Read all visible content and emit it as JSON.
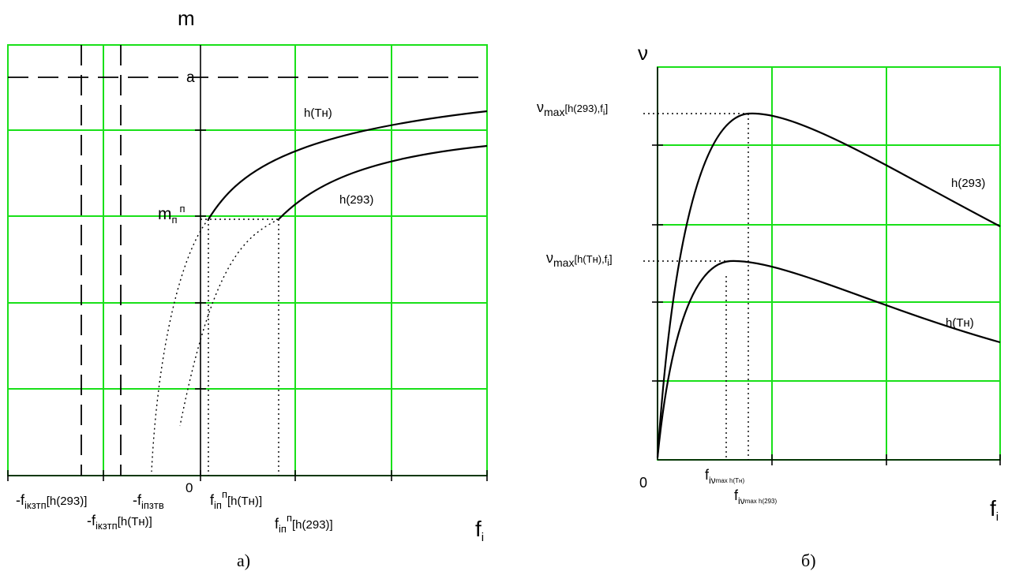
{
  "left_panel": {
    "caption": "а)",
    "axis_y_label": "m",
    "axis_x_label_main": "f",
    "axis_x_label_sub": "i",
    "origin_label": "0",
    "asymptote_label": "a",
    "mn_label_main": "m",
    "mn_label_sub": "п",
    "mn_label_sup": "п",
    "curve_labels": [
      "h(Tн)",
      "h(293)"
    ],
    "x_labels": {
      "f1_main": "-f",
      "f1_sub": "iкзтп",
      "f1_tail": "[h(293)]",
      "f2_main": "-f",
      "f2_sub": "iкзтп",
      "f2_tail": "[h(Tн)]",
      "f3_main": "-f",
      "f3_sub": "iпзтв",
      "f4_main": "f",
      "f4_sub": "iп",
      "f4_sup": "п",
      "f4_tail": "[h(Tн)]",
      "f5_main": "f",
      "f5_sub": "iп",
      "f5_sup": "п",
      "f5_tail": "[h(293)]"
    }
  },
  "right_panel": {
    "caption": "б)",
    "axis_y_label": "ν",
    "axis_x_label_main": "f",
    "axis_x_label_sub": "i",
    "origin_label": "0",
    "curve_labels": [
      "h(293)",
      "h(Tн)"
    ],
    "max1_main": "ν",
    "max1_sub": "max",
    "max1_tail": "[h(293),f",
    "max1_sub2": "i",
    "max1_end": "]",
    "max2_main": "ν",
    "max2_sub": "max",
    "max2_tail": "[h(Tн),f",
    "max2_sub2": "i",
    "max2_end": "]",
    "fx1_main": "f",
    "fx1_sub": "iν",
    "fx1_tail": "max h(Tн)",
    "fx2_main": "f",
    "fx2_sub": "iν",
    "fx2_tail": "max h(293)"
  },
  "colors": {
    "grid": "#19e019",
    "line": "#000000"
  }
}
